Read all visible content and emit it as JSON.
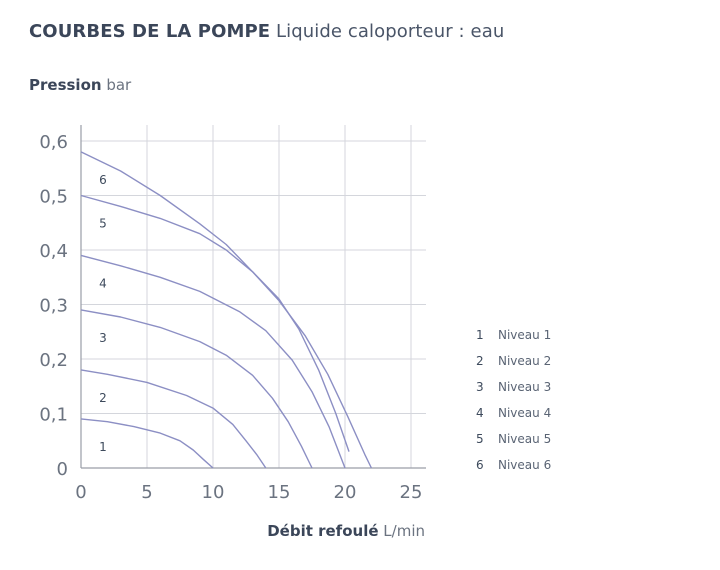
{
  "title": {
    "main": "COURBES DE LA POMPE",
    "sub": "Liquide caloporteur : eau"
  },
  "axes": {
    "y_label_main": "Pression",
    "y_label_unit": "bar",
    "x_label_main": "Débit refoulé",
    "x_label_unit": "L/min"
  },
  "colors": {
    "curve": "#8c8fc4",
    "grid": "#d4d6dc",
    "axis": "#9a9ea8",
    "tick_text": "#6b7380",
    "curve_label": "#3d4a5c"
  },
  "chart_data": {
    "type": "line",
    "xlim": [
      0,
      25
    ],
    "ylim": [
      0,
      0.6
    ],
    "x_ticks": [
      0,
      5,
      10,
      15,
      20,
      25
    ],
    "x_tick_labels": [
      "0",
      "5",
      "10",
      "15",
      "20",
      "25"
    ],
    "y_ticks": [
      0,
      0.1,
      0.2,
      0.3,
      0.4,
      0.5,
      0.6
    ],
    "y_tick_labels": [
      "0",
      "0,1",
      "0,2",
      "0,3",
      "0,4",
      "0,5",
      "0,6"
    ],
    "grid": true,
    "series": [
      {
        "name": "1",
        "label": "1",
        "x": [
          0,
          2,
          4,
          6,
          7.5,
          8.5,
          9.3,
          10
        ],
        "y": [
          0.09,
          0.085,
          0.076,
          0.064,
          0.05,
          0.033,
          0.015,
          0
        ]
      },
      {
        "name": "2",
        "label": "2",
        "x": [
          0,
          2,
          5,
          8,
          10,
          11.5,
          12.5,
          13.3,
          14
        ],
        "y": [
          0.18,
          0.172,
          0.157,
          0.133,
          0.11,
          0.08,
          0.05,
          0.025,
          0
        ]
      },
      {
        "name": "3",
        "label": "3",
        "x": [
          0,
          3,
          6,
          9,
          11,
          13,
          14.5,
          15.7,
          16.7,
          17.5
        ],
        "y": [
          0.29,
          0.277,
          0.258,
          0.232,
          0.207,
          0.17,
          0.128,
          0.085,
          0.04,
          0
        ]
      },
      {
        "name": "4",
        "label": "4",
        "x": [
          0,
          3,
          6,
          9,
          12,
          14,
          16,
          17.5,
          18.8,
          20
        ],
        "y": [
          0.39,
          0.371,
          0.35,
          0.324,
          0.287,
          0.252,
          0.198,
          0.14,
          0.075,
          0
        ]
      },
      {
        "name": "5",
        "label": "5",
        "x": [
          0,
          3,
          6,
          9,
          11,
          13,
          15,
          16.5,
          18,
          19.3,
          20.3
        ],
        "y": [
          0.5,
          0.48,
          0.458,
          0.43,
          0.4,
          0.36,
          0.31,
          0.255,
          0.18,
          0.1,
          0.03
        ]
      },
      {
        "name": "6",
        "label": "6",
        "x": [
          0,
          3,
          6,
          9,
          11,
          13,
          15,
          17,
          18.7,
          20.2,
          21.5,
          22
        ],
        "y": [
          0.58,
          0.545,
          0.5,
          0.448,
          0.41,
          0.36,
          0.307,
          0.242,
          0.172,
          0.095,
          0.025,
          0
        ]
      }
    ],
    "legend": {
      "position": "right",
      "entries": [
        {
          "num": "1",
          "text": "Niveau 1"
        },
        {
          "num": "2",
          "text": "Niveau 2"
        },
        {
          "num": "3",
          "text": "Niveau 3"
        },
        {
          "num": "4",
          "text": "Niveau 4"
        },
        {
          "num": "5",
          "text": "Niveau 5"
        },
        {
          "num": "6",
          "text": "Niveau 6"
        }
      ]
    }
  }
}
